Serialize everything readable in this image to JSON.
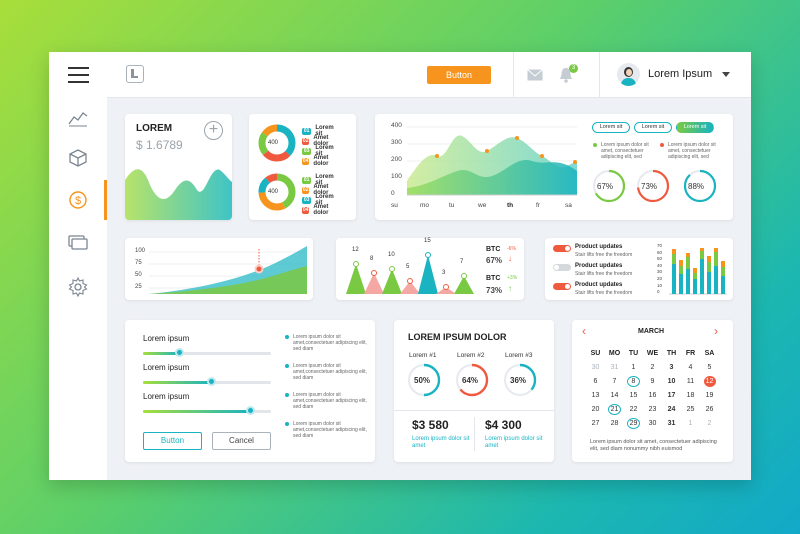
{
  "topbar": {
    "button_label": "Button",
    "notif_count": "3",
    "user_name": "Lorem Ipsum"
  },
  "card1": {
    "title": "LOREM",
    "value": "$ 1.6789"
  },
  "donuts": {
    "center": "400",
    "legend1": [
      {
        "num": "01",
        "label": "Lorem sit",
        "color": "#19b3c1"
      },
      {
        "num": "02",
        "label": "Amet dolor",
        "color": "#ef5a3f"
      },
      {
        "num": "03",
        "label": "Lorem sit",
        "color": "#7ac943"
      },
      {
        "num": "04",
        "label": "Amet dolor",
        "color": "#f7941d"
      }
    ],
    "legend2": [
      {
        "num": "01",
        "label": "Lorem sit",
        "color": "#7ac943"
      },
      {
        "num": "02",
        "label": "Amet dolor",
        "color": "#f7941d"
      },
      {
        "num": "03",
        "label": "Lorem sit",
        "color": "#19b3c1"
      },
      {
        "num": "04",
        "label": "Amet dolor",
        "color": "#ef5a3f"
      }
    ]
  },
  "mainchart": {
    "yticks": [
      "400",
      "300",
      "200",
      "100",
      "0"
    ],
    "xticks": [
      "su",
      "mo",
      "tu",
      "we",
      "th",
      "fr",
      "sa"
    ]
  },
  "rightpanel": {
    "pills": [
      "Lorem sit",
      "Lorem sit",
      "Lorem sit"
    ],
    "notes": [
      "Lorem ipsum dolor sit amet, consectetuer adipiscing elit, sed",
      "Lorem ipsum dolor sit amet, consectetuer adipiscing elit, sed"
    ],
    "gauges": [
      "67%",
      "73%",
      "88%"
    ]
  },
  "areachart": {
    "yticks": [
      "100",
      "75",
      "50",
      "25"
    ]
  },
  "peaks": {
    "labels": [
      "12",
      "8",
      "10",
      "5",
      "15",
      "3",
      "7"
    ],
    "btc1": {
      "label": "BTC",
      "delta": "-6%",
      "value": "67%"
    },
    "btc2": {
      "label": "BTC",
      "delta": "+3%",
      "value": "73%"
    }
  },
  "updates": {
    "items": [
      {
        "title": "Product updates",
        "desc": "Stair lifts free the freedom"
      },
      {
        "title": "Product updates",
        "desc": "Stair lifts free the freedom"
      },
      {
        "title": "Product updates",
        "desc": "Stair lifts free the freedom"
      }
    ],
    "yticks": [
      "70",
      "60",
      "50",
      "40",
      "30",
      "20",
      "10",
      "0"
    ]
  },
  "sliders": {
    "labels": [
      "Lorem ipsum",
      "Lorem ipsum",
      "Lorem ipsum"
    ],
    "notes": [
      "Lorem ipsum dolor sit amet,consectetuer adipiscing elit, sed diam",
      "Lorem ipsum dolor sit amet,consectetuer adipiscing elit, sed diam",
      "Lorem ipsum dolor sit amet,consectetuer adipiscing elit, sed diam",
      "Lorem ipsum dolor sit amet,consectetuer adipiscing elit, sed diam"
    ],
    "button": "Button",
    "cancel": "Cancel"
  },
  "stats": {
    "title": "LOREM IPSUM DOLOR",
    "items": [
      {
        "label": "Lorem #1",
        "value": "50%",
        "pct": 0.5
      },
      {
        "label": "Lorem #2",
        "value": "64%",
        "pct": 0.64
      },
      {
        "label": "Lorem #3",
        "value": "36%",
        "pct": 0.36
      }
    ],
    "amount1": "$3 580",
    "amount2": "$4 300",
    "note1": "Lorem ipsum dolor sit amet",
    "note2": "Lorem ipsum dolor sit amet"
  },
  "calendar": {
    "month": "MARCH",
    "weekdays": [
      "SU",
      "MO",
      "TU",
      "WE",
      "TH",
      "FR",
      "SA"
    ],
    "days": [
      "30",
      "31",
      "1",
      "2",
      "3",
      "4",
      "5",
      "6",
      "7",
      "8",
      "9",
      "10",
      "11",
      "12",
      "13",
      "14",
      "15",
      "16",
      "17",
      "18",
      "19",
      "20",
      "21",
      "22",
      "23",
      "24",
      "25",
      "26",
      "27",
      "28",
      "29",
      "30",
      "31",
      "1",
      "2"
    ],
    "note": "Lorem ipsum dolor sit amet, consectetuer adipiscing elit, sed diam nonummy nibh euismod"
  },
  "colors": {
    "accent": "#19b3c1",
    "orange": "#f7941d",
    "red": "#ef5a3f",
    "green": "#7ac943"
  }
}
